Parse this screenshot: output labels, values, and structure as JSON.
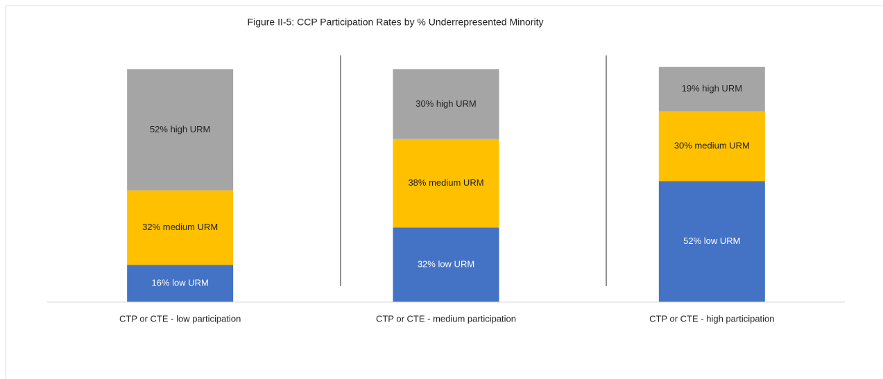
{
  "chart_data": {
    "type": "bar",
    "stacked": true,
    "title": "Figure II-5: CCP Participation Rates by % Underrepresented Minority",
    "categories": [
      "CTP or CTE - low participation",
      "CTP or CTE - medium participation",
      "CTP or CTE - high participation"
    ],
    "series": [
      {
        "color": "#4472c4",
        "values": [
          16,
          32,
          52
        ],
        "value_labels": [
          "16% low URM",
          "32% low URM",
          "52% low URM"
        ]
      },
      {
        "color": "#ffc000",
        "values": [
          32,
          38,
          30
        ],
        "value_labels": [
          "32% medium URM",
          "38% medium URM",
          "30% medium URM"
        ]
      },
      {
        "color": "#a5a5a5",
        "values": [
          52,
          30,
          19
        ],
        "value_labels": [
          "52% high URM",
          "30% high URM",
          "19% high URM"
        ]
      }
    ],
    "ylim": [
      0,
      100
    ]
  }
}
